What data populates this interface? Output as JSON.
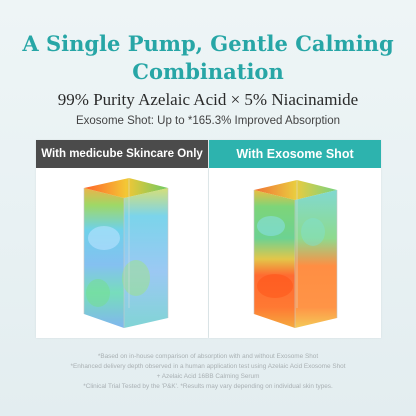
{
  "title": "A Single Pump, Gentle Calming Combination",
  "subtitle": "99% Purity Azelaic Acid × 5% Niacinamide",
  "tagline": "Exosome Shot: Up to *165.3% Improved Absorption",
  "panels": {
    "left": {
      "label": "With medicube Skincare Only"
    },
    "right": {
      "label": "With Exosome Shot"
    }
  },
  "footnotes": [
    "*Based on in-house comparison of absorption with and without Exosome Shot",
    "*Enhanced delivery depth observed in a human application test using Azelaic Acid Exosome Shot",
    "+ Azelaic Acid 16BB Calming Serum",
    "*Clinical Trial Tested by the 'P&K'. *Results may vary depending on individual skin types."
  ],
  "colors": {
    "accent": "#2db3ae",
    "title": "#27a6a6",
    "dark_header": "#4b4b4b"
  }
}
